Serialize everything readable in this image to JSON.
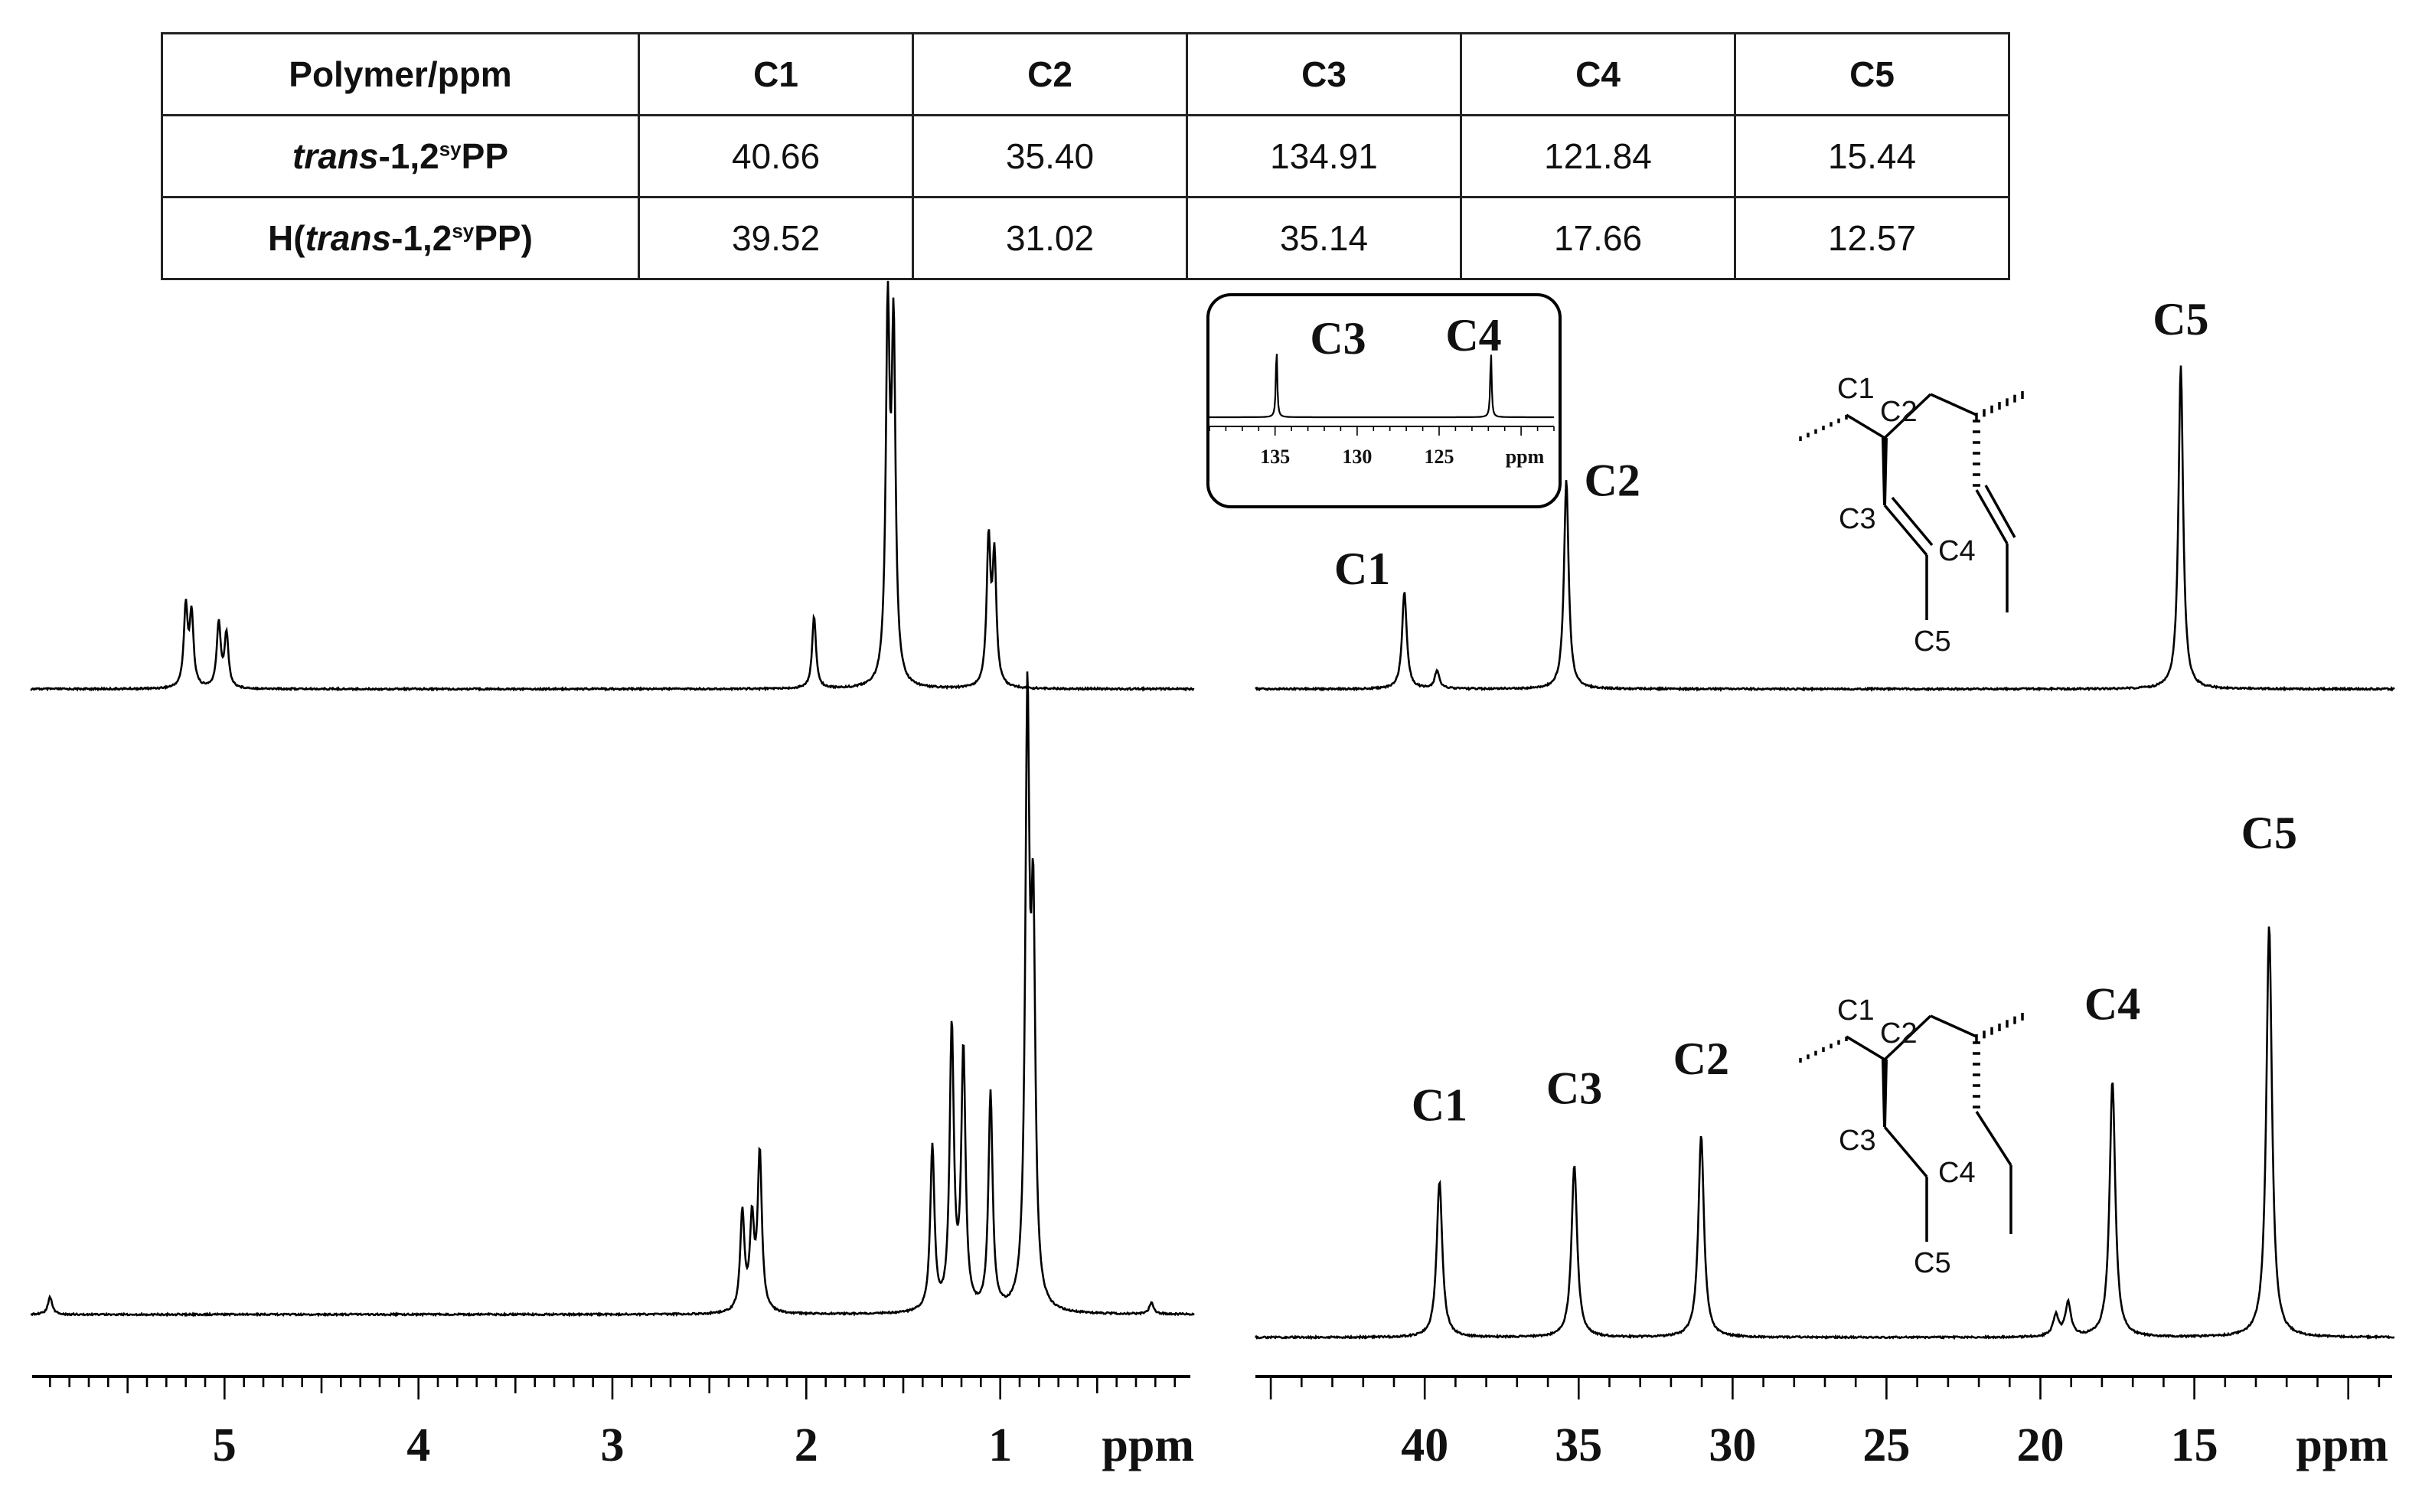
{
  "table": {
    "headers": [
      "Polymer/ppm",
      "C1",
      "C2",
      "C3",
      "C4",
      "C5"
    ],
    "rows": [
      {
        "polymer_italic": "trans",
        "polymer_main": "-1,2",
        "polymer_sup": "sy",
        "polymer_end": "PP",
        "polymer_prefix": "",
        "polymer_suffix": "",
        "values": [
          "40.66",
          "35.40",
          "134.91",
          "121.84",
          "15.44"
        ]
      },
      {
        "polymer_prefix": "H(",
        "polymer_italic": "trans",
        "polymer_main": "-1,2",
        "polymer_sup": "sy",
        "polymer_end": "PP",
        "polymer_suffix": ")",
        "values": [
          "39.52",
          "31.02",
          "35.14",
          "17.66",
          "12.57"
        ]
      }
    ]
  },
  "chart_data": [
    {
      "type": "line",
      "panel": "1H NMR spectrum (top, trans-1,2syPP)",
      "xlabel": "ppm",
      "x_reversed": true,
      "xlim": [
        6.0,
        0.0
      ],
      "xticks": [
        "5",
        "4",
        "3",
        "2",
        "1"
      ],
      "peaks": [
        {
          "x": 5.2,
          "height": 0.22
        },
        {
          "x": 5.17,
          "height": 0.2
        },
        {
          "x": 5.03,
          "height": 0.18
        },
        {
          "x": 4.99,
          "height": 0.15
        },
        {
          "x": 1.96,
          "height": 0.2
        },
        {
          "x": 1.58,
          "height": 1.0
        },
        {
          "x": 1.55,
          "height": 0.95
        },
        {
          "x": 1.06,
          "height": 0.4
        },
        {
          "x": 1.03,
          "height": 0.35
        }
      ]
    },
    {
      "type": "line",
      "panel": "1H NMR spectrum (bottom, H(trans-1,2syPP))",
      "xlabel": "ppm",
      "x_reversed": true,
      "xlim": [
        6.0,
        0.0
      ],
      "xticks": [
        "5",
        "4",
        "3",
        "2",
        "1"
      ],
      "peaks": [
        {
          "x": 5.9,
          "height": 0.03
        },
        {
          "x": 2.33,
          "height": 0.17
        },
        {
          "x": 2.28,
          "height": 0.15
        },
        {
          "x": 2.24,
          "height": 0.27
        },
        {
          "x": 1.35,
          "height": 0.28
        },
        {
          "x": 1.25,
          "height": 0.48
        },
        {
          "x": 1.19,
          "height": 0.44
        },
        {
          "x": 1.05,
          "height": 0.37
        },
        {
          "x": 0.86,
          "height": 1.0
        },
        {
          "x": 0.83,
          "height": 0.62
        },
        {
          "x": 0.22,
          "height": 0.02
        }
      ]
    },
    {
      "type": "line",
      "panel": "13C NMR spectrum (top, trans-1,2syPP)",
      "xlabel": "ppm",
      "x_reversed": true,
      "xlim": [
        45.5,
        8.5
      ],
      "peaks": [
        {
          "x": 40.66,
          "height": 0.27,
          "label": "C1"
        },
        {
          "x": 39.6,
          "height": 0.05
        },
        {
          "x": 35.4,
          "height": 0.58,
          "label": "C2"
        },
        {
          "x": 15.44,
          "height": 0.9,
          "label": "C5"
        }
      ],
      "inset": {
        "xlim": [
          139.0,
          118.0
        ],
        "xticks": [
          "135",
          "130",
          "125",
          "ppm"
        ],
        "peaks": [
          {
            "x": 134.91,
            "height": 1.0,
            "label": "C3"
          },
          {
            "x": 121.84,
            "height": 0.95,
            "label": "C4"
          }
        ]
      },
      "structure_labels": [
        "C1",
        "C2",
        "C3",
        "C4",
        "C5"
      ]
    },
    {
      "type": "line",
      "panel": "13C NMR spectrum (bottom, H(trans-1,2syPP))",
      "xlabel": "ppm",
      "x_reversed": true,
      "xlim": [
        45.5,
        8.5
      ],
      "xticks": [
        "40",
        "35",
        "30",
        "25",
        "20",
        "15"
      ],
      "peaks": [
        {
          "x": 39.52,
          "height": 0.37,
          "label": "C1"
        },
        {
          "x": 35.14,
          "height": 0.41,
          "label": "C3"
        },
        {
          "x": 31.02,
          "height": 0.48,
          "label": "C2"
        },
        {
          "x": 19.5,
          "height": 0.05
        },
        {
          "x": 19.1,
          "height": 0.08
        },
        {
          "x": 17.66,
          "height": 0.61,
          "label": "C4"
        },
        {
          "x": 12.57,
          "height": 0.98,
          "label": "C5"
        }
      ],
      "structure_labels": [
        "C1",
        "C2",
        "C3",
        "C4",
        "C5"
      ]
    }
  ]
}
